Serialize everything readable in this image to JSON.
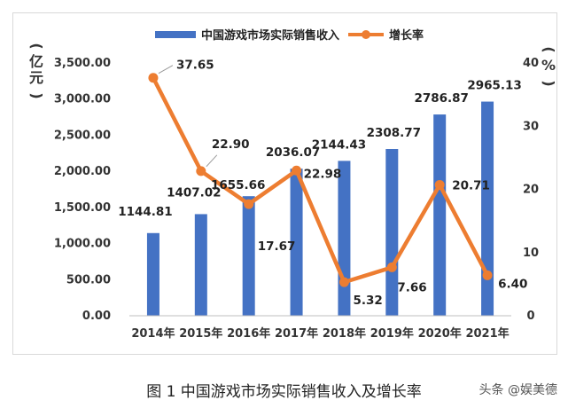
{
  "chart_data": {
    "type": "bar",
    "categories": [
      "2014年",
      "2015年",
      "2016年",
      "2017年",
      "2018年",
      "2019年",
      "2020年",
      "2021年"
    ],
    "series": [
      {
        "name": "中国游戏市场实际销售收入",
        "type": "bar",
        "axis": "left",
        "values": [
          1144.81,
          1407.02,
          1655.66,
          2036.07,
          2144.43,
          2308.77,
          2786.87,
          2965.13
        ],
        "labels": [
          "1144.81",
          "1407.02",
          "1655.66",
          "2036.07",
          "2144.43",
          "2308.77",
          "2786.87",
          "2965.13"
        ]
      },
      {
        "name": "增长率",
        "type": "line",
        "axis": "right",
        "values": [
          37.65,
          22.9,
          17.67,
          22.98,
          5.32,
          7.66,
          20.71,
          6.4
        ],
        "labels": [
          "37.65",
          "22.90",
          "17.67",
          "22.98",
          "5.32",
          "7.66",
          "20.71",
          "6.40"
        ]
      }
    ],
    "y_left": {
      "label_chars": [
        "(",
        "亿",
        "元",
        ")"
      ],
      "ylim": [
        0,
        3500
      ],
      "ticks": [
        0,
        500,
        1000,
        1500,
        2000,
        2500,
        3000,
        3500
      ],
      "tick_labels": [
        "0.00",
        "500.00",
        "1,000.00",
        "1,500.00",
        "2,000.00",
        "2,500.00",
        "3,000.00",
        "3,500.00"
      ]
    },
    "y_right": {
      "label_chars": [
        "(",
        "%",
        ")"
      ],
      "ylim": [
        0,
        40
      ],
      "ticks": [
        0,
        10,
        20,
        30,
        40
      ],
      "tick_labels": [
        "0",
        "10",
        "20",
        "30",
        "40"
      ]
    },
    "grid": false,
    "legend_position": "top-center",
    "colors": {
      "bar": "#4472c4",
      "line": "#ed7d31",
      "text": "#333333"
    }
  },
  "caption": "图 1 中国游戏市场实际销售收入及增长率",
  "watermark": "头条 @娱美德"
}
